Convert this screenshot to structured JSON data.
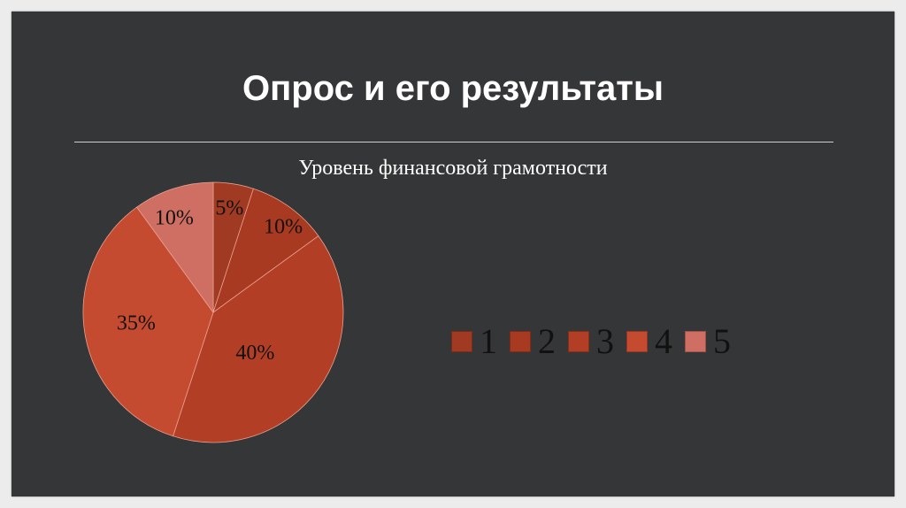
{
  "slide": {
    "title": "Опрос и его результаты"
  },
  "chart_data": {
    "type": "pie",
    "title": "Уровень финансовой грамотности",
    "categories": [
      "1",
      "2",
      "3",
      "4",
      "5"
    ],
    "values": [
      5,
      10,
      40,
      35,
      10
    ],
    "data_labels": [
      "5%",
      "10%",
      "40%",
      "35%",
      "10%"
    ],
    "colors": [
      "#a03a22",
      "#a83a22",
      "#b23f25",
      "#c54b30",
      "#cf6f63"
    ],
    "legend_position": "right"
  }
}
